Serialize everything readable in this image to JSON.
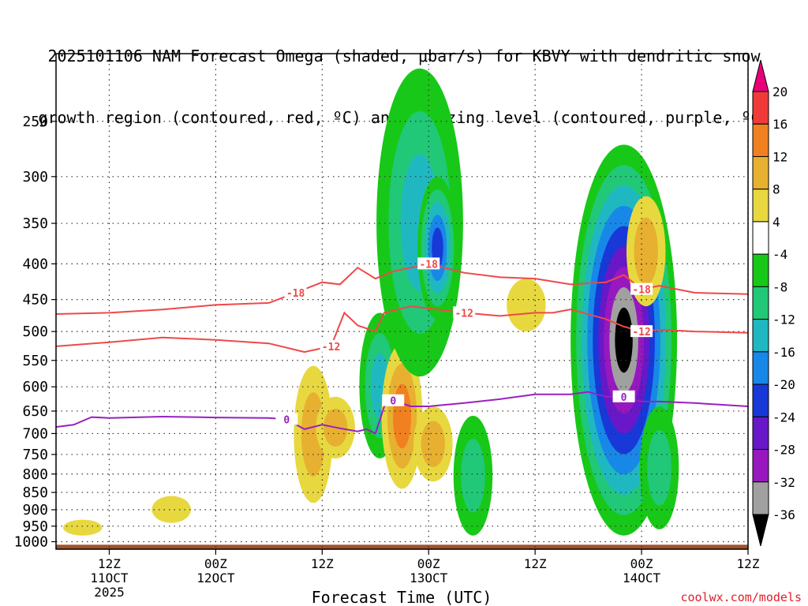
{
  "title_line1": "2025101106 NAM Forecast Omega (shaded, μbar/s) for KBVY with dendritic snow",
  "title_line2": "growth region (contoured, red, ºC) and freezing level (contoured, purple, ºC)",
  "credit": "coolwx.com/models",
  "chart_data": {
    "type": "heatmap",
    "title": "2025101106 NAM Forecast Omega (shaded, μbar/s) for KBVY with dendritic snow growth region (contoured, red, ºC) and freezing level (contoured, purple, ºC)",
    "xlabel": "Forecast Time (UTC)",
    "ylabel": "",
    "x_range_hours": [
      6,
      84
    ],
    "y_range_hpa": [
      200,
      1025
    ],
    "y_scale": "log-pressure",
    "y_ticks": [
      250,
      300,
      350,
      400,
      450,
      500,
      550,
      600,
      650,
      700,
      750,
      800,
      850,
      900,
      950,
      1000
    ],
    "x_ticks": [
      {
        "hour": 12,
        "line1": "12Z",
        "line2": "11OCT",
        "line3": "2025"
      },
      {
        "hour": 24,
        "line1": "00Z",
        "line2": "12OCT",
        "line3": ""
      },
      {
        "hour": 36,
        "line1": "12Z",
        "line2": "",
        "line3": ""
      },
      {
        "hour": 48,
        "line1": "00Z",
        "line2": "13OCT",
        "line3": ""
      },
      {
        "hour": 60,
        "line1": "12Z",
        "line2": "",
        "line3": ""
      },
      {
        "hour": 72,
        "line1": "00Z",
        "line2": "14OCT",
        "line3": ""
      },
      {
        "hour": 84,
        "line1": "12Z",
        "line2": "",
        "line3": ""
      }
    ],
    "colorbar": {
      "levels": [
        "20",
        "16",
        "12",
        "8",
        "4",
        "-4",
        "-8",
        "-12",
        "-16",
        "-20",
        "-24",
        "-28",
        "-32",
        "-36"
      ],
      "colors": [
        "#e8007a",
        "#f03a3a",
        "#f08020",
        "#e8b030",
        "#e8d840",
        "#ffffff",
        "#18c818",
        "#20c878",
        "#20b8c0",
        "#1888e8",
        "#1838d8",
        "#6818c8",
        "#9818c0",
        "#a0a0a0",
        "#000000"
      ]
    },
    "omega_features": [
      {
        "time_h": 35,
        "p_top": 560,
        "p_bot": 880,
        "omega": 8
      },
      {
        "time_h": 37.5,
        "p_top": 620,
        "p_bot": 760,
        "omega": 8
      },
      {
        "time_h": 42.5,
        "p_top": 470,
        "p_bot": 760,
        "omega": -12
      },
      {
        "time_h": 45,
        "p_top": 520,
        "p_bot": 840,
        "omega": 12
      },
      {
        "time_h": 47,
        "p_top": 210,
        "p_bot": 580,
        "omega": -12
      },
      {
        "time_h": 48.5,
        "p_top": 640,
        "p_bot": 820,
        "omega": 8
      },
      {
        "time_h": 49,
        "p_top": 300,
        "p_bot": 480,
        "omega": -20
      },
      {
        "time_h": 53,
        "p_top": 660,
        "p_bot": 980,
        "omega": -8
      },
      {
        "time_h": 59,
        "p_top": 420,
        "p_bot": 500,
        "omega": 4
      },
      {
        "time_h": 70,
        "p_top": 270,
        "p_bot": 980,
        "omega": -36
      },
      {
        "time_h": 72.5,
        "p_top": 320,
        "p_bot": 460,
        "omega": 8
      },
      {
        "time_h": 74,
        "p_top": 640,
        "p_bot": 960,
        "omega": -8
      },
      {
        "time_h": 9,
        "p_top": 930,
        "p_bot": 980,
        "omega": 4
      },
      {
        "time_h": 19,
        "p_top": 860,
        "p_bot": 940,
        "omega": 4
      }
    ],
    "series": [
      {
        "name": "-18 ºC contour (red)",
        "label": "-18",
        "color": "#f04848",
        "hours": [
          6,
          12,
          18,
          24,
          30,
          33,
          36,
          38,
          40,
          42,
          44,
          46,
          48,
          52,
          56,
          60,
          64,
          68,
          70,
          72,
          74,
          78,
          84
        ],
        "hpa": [
          472,
          470,
          465,
          458,
          455,
          440,
          425,
          428,
          405,
          420,
          410,
          405,
          400,
          412,
          418,
          420,
          428,
          425,
          415,
          435,
          430,
          440,
          442
        ]
      },
      {
        "name": "-12 ºC contour (red)",
        "label": "-12",
        "color": "#f04848",
        "hours": [
          6,
          12,
          18,
          24,
          30,
          34,
          37,
          38.5,
          40,
          42,
          43,
          46,
          49,
          52,
          56,
          60,
          62,
          64,
          68,
          70,
          72,
          74,
          78,
          84
        ],
        "hpa": [
          525,
          518,
          510,
          514,
          520,
          535,
          525,
          470,
          490,
          500,
          470,
          460,
          465,
          470,
          475,
          470,
          470,
          465,
          480,
          492,
          500,
          497,
          500,
          502
        ]
      },
      {
        "name": "0 ºC freezing level (purple)",
        "label": "0",
        "color": "#9820c0",
        "hours": [
          6,
          8,
          10,
          12,
          18,
          24,
          30,
          32,
          34,
          36,
          38,
          40,
          41,
          42,
          43,
          44,
          46,
          48,
          52,
          56,
          60,
          64,
          66,
          68,
          70,
          72,
          74,
          78,
          84
        ],
        "hpa": [
          685,
          680,
          663,
          665,
          662,
          664,
          665,
          668,
          690,
          680,
          688,
          695,
          690,
          700,
          640,
          628,
          640,
          640,
          633,
          625,
          615,
          615,
          610,
          620,
          620,
          630,
          630,
          633,
          640
        ]
      }
    ]
  }
}
